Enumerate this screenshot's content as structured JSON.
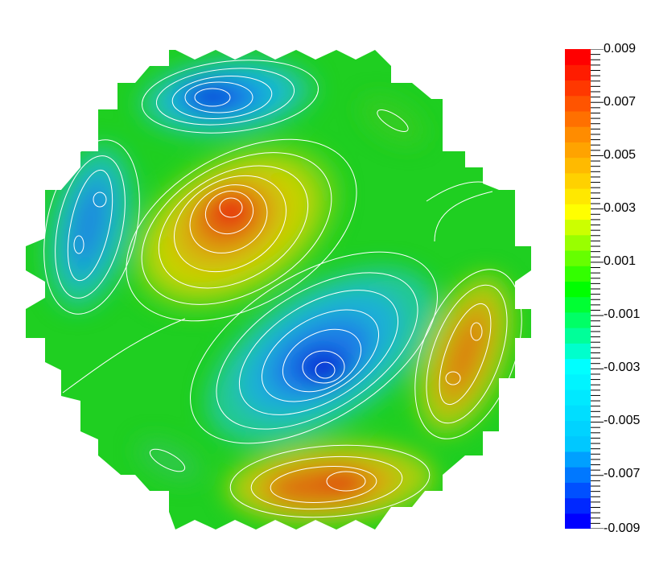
{
  "colorbar": {
    "max": 0.009,
    "min": -0.009,
    "colors": [
      "#0000ff",
      "#00c8ff",
      "#00ffff",
      "#00ff00",
      "#ffff00",
      "#ff8c00",
      "#ff0000"
    ],
    "labels": [
      "0.009",
      "0.007",
      "0.005",
      "0.003",
      "0.001",
      "-0.001",
      "-0.003",
      "-0.005",
      "-0.007",
      "-0.009"
    ]
  },
  "image": {
    "subject": "contour-plot-circular-mode-shape"
  }
}
